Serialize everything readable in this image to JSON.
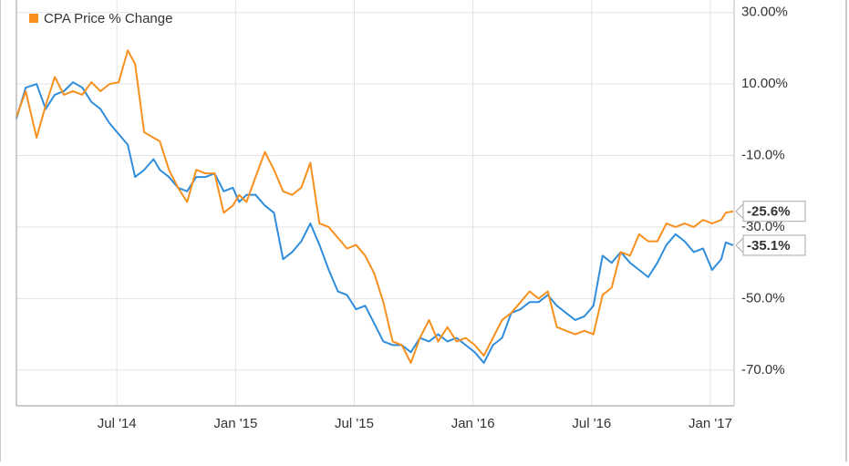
{
  "chart_data": {
    "type": "line",
    "x": [
      0.92,
      1.39,
      1.94,
      2.4,
      2.86,
      3.32,
      3.78,
      4.25,
      4.71,
      5.17,
      5.63,
      6.09,
      6.55,
      6.92,
      7.38,
      7.85,
      8.17,
      8.63,
      9.09,
      9.55,
      10.01,
      10.48,
      10.94,
      11.4,
      11.86,
      12.18,
      12.55,
      13.01,
      13.48,
      13.94,
      14.4,
      14.86,
      15.32,
      15.78,
      16.24,
      16.71,
      17.17,
      17.63,
      18.09,
      18.55,
      19.01,
      19.47,
      19.94,
      20.4,
      20.86,
      21.32,
      21.78,
      22.24,
      22.71,
      23.17,
      23.63,
      24.09,
      24.55,
      25.01,
      25.47,
      25.94,
      26.4,
      26.86,
      27.32,
      27.78,
      28.24,
      28.7,
      29.17,
      29.63,
      30.09,
      30.55,
      31.01,
      31.47,
      31.94,
      32.4,
      32.86,
      33.32,
      33.78,
      34.24,
      34.7,
      35.16,
      35.63,
      36.09,
      36.55,
      36.78,
      37.15
    ],
    "series": [
      {
        "color": "#2f8ddb",
        "values": [
          0.3,
          9,
          10,
          3,
          7,
          8,
          10.5,
          9,
          5,
          3,
          -1,
          -4,
          -7,
          -16,
          -14,
          -11,
          -14,
          -16,
          -19,
          -20,
          -16,
          -16,
          -15,
          -20,
          -19,
          -23,
          -21,
          -21,
          -24,
          -26,
          -39,
          -37,
          -34,
          -29,
          -35,
          -42,
          -48,
          -49,
          -53,
          -52,
          -57,
          -62,
          -63,
          -63,
          -65,
          -61,
          -62,
          -60,
          -62,
          -61,
          -63,
          -65,
          -68,
          -63,
          -61,
          -54,
          -53,
          -51,
          -51,
          -49,
          -52,
          -54,
          -56,
          -55,
          -52,
          -38,
          -40,
          -37,
          -40,
          -42,
          -44,
          -40,
          -35,
          -32,
          -34,
          -37,
          -36,
          -42,
          -39,
          -34.3,
          -35.1
        ],
        "end_label": {
          "value": -35.1,
          "label": "-35.1%"
        }
      },
      {
        "name": "CPA Price % Change",
        "color": "#f7901e",
        "values": [
          0.8,
          8,
          -5,
          4,
          12,
          7,
          8,
          7,
          10.5,
          8,
          10,
          10.5,
          19.4,
          15.6,
          -3.5,
          -5,
          -6,
          -14,
          -19,
          -23,
          -14,
          -15,
          -15,
          -26,
          -24,
          -21,
          -23,
          -16,
          -9,
          -14,
          -20,
          -21,
          -19,
          -12,
          -29,
          -30,
          -33,
          -36,
          -35,
          -38,
          -43,
          -51,
          -62,
          -63,
          -68,
          -61,
          -56,
          -62,
          -58,
          -62,
          -61,
          -63,
          -66,
          -61,
          -56,
          -54,
          -51,
          -48,
          -50,
          -48,
          -58,
          -59,
          -60,
          -59,
          -60,
          -49,
          -47,
          -37,
          -38,
          -32,
          -34,
          -34,
          -29,
          -30,
          -29,
          -30,
          -28,
          -29,
          -28,
          -26,
          -25.6
        ],
        "end_label": {
          "value": -25.6,
          "label": "-25.6%"
        }
      }
    ],
    "xlim": [
      0.92,
      37.2
    ],
    "xticks": [
      {
        "value": 6,
        "label": "Jul '14"
      },
      {
        "value": 12,
        "label": "Jan '15"
      },
      {
        "value": 18,
        "label": "Jul '15"
      },
      {
        "value": 24,
        "label": "Jan '16"
      },
      {
        "value": 30,
        "label": "Jul '16"
      },
      {
        "value": 36,
        "label": "Jan '17"
      }
    ],
    "ylim": [
      -80,
      33.5
    ],
    "yticks": [
      {
        "value": 30,
        "label": "30.00%"
      },
      {
        "value": 10,
        "label": "10.00%"
      },
      {
        "value": -10,
        "label": "-10.0%"
      },
      {
        "value": -30,
        "label": "-30.0%"
      },
      {
        "value": -50,
        "label": "-50.0%"
      },
      {
        "value": -70,
        "label": "-70.0%"
      }
    ],
    "grid": true,
    "legend": "top-left"
  }
}
